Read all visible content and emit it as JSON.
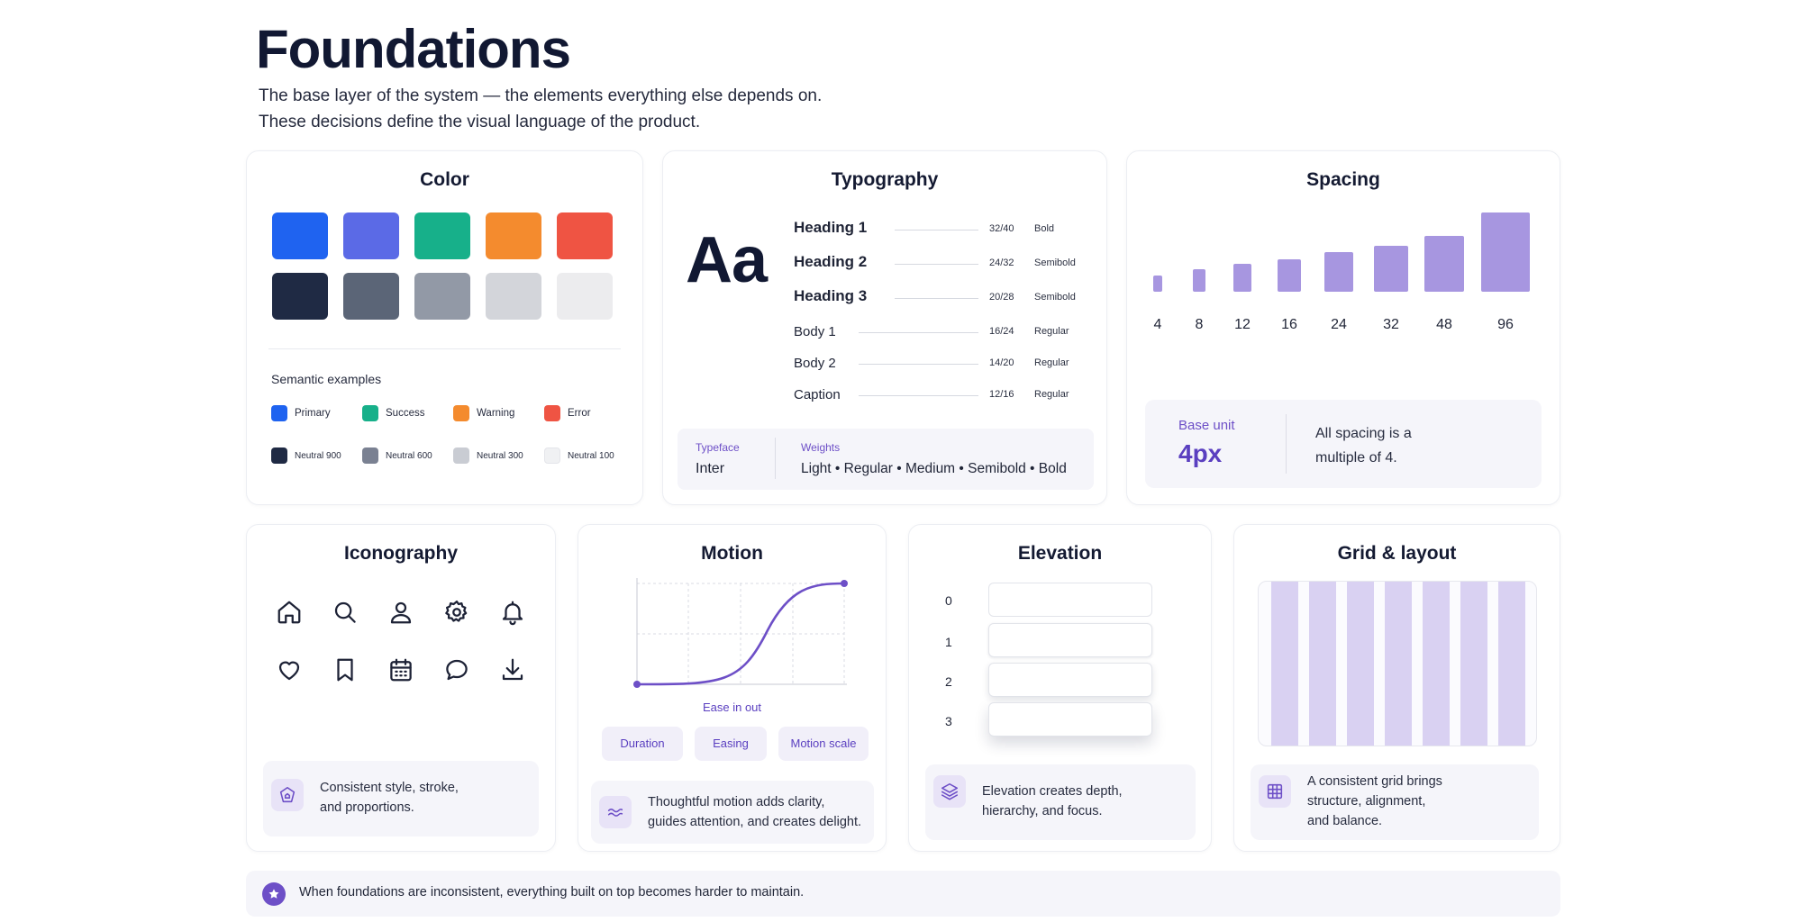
{
  "header": {
    "title": "Foundations",
    "subtitle_line1": "The base layer of the system — the elements everything else depends on.",
    "subtitle_line2": "These decisions define the visual language of the product."
  },
  "color": {
    "title": "Color",
    "swatches_row1": [
      "#1f63f0",
      "#5b6ae6",
      "#17b08a",
      "#f48b2e",
      "#ef5443"
    ],
    "swatches_row2": [
      "#1f2a44",
      "#5b6577",
      "#9299a6",
      "#d3d5da",
      "#ececee"
    ],
    "semantic_title": "Semantic examples",
    "semantic": [
      {
        "label": "Primary",
        "color": "#1f63f0"
      },
      {
        "label": "Success",
        "color": "#17b08a"
      },
      {
        "label": "Warning",
        "color": "#f48b2e"
      },
      {
        "label": "Error",
        "color": "#ef5443"
      }
    ],
    "neutrals": [
      {
        "label": "Neutral 900",
        "color": "#1f2a44"
      },
      {
        "label": "Neutral 600",
        "color": "#7a8192"
      },
      {
        "label": "Neutral 300",
        "color": "#c9ccd3"
      },
      {
        "label": "Neutral 100",
        "color": "#f0f1f3"
      }
    ]
  },
  "typography": {
    "title": "Typography",
    "sample": "Aa",
    "scale": [
      {
        "name": "Heading 1",
        "size": "32/40",
        "weight": "Bold"
      },
      {
        "name": "Heading 2",
        "size": "24/32",
        "weight": "Semibold"
      },
      {
        "name": "Heading 3",
        "size": "20/28",
        "weight": "Semibold"
      },
      {
        "name": "Body 1",
        "size": "16/24",
        "weight": "Regular"
      },
      {
        "name": "Body 2",
        "size": "14/20",
        "weight": "Regular"
      },
      {
        "name": "Caption",
        "size": "12/16",
        "weight": "Regular"
      }
    ],
    "typeface_label": "Typeface",
    "typeface_value": "Inter",
    "weights_label": "Weights",
    "weights_value": "Light  • Regular • Medium • Semibold • Bold"
  },
  "spacing": {
    "title": "Spacing",
    "steps": [
      "4",
      "8",
      "12",
      "16",
      "24",
      "32",
      "48",
      "96"
    ],
    "base_label": "Base unit",
    "base_value": "4px",
    "note_line1": "All spacing is a",
    "note_line2": "multiple of 4."
  },
  "iconography": {
    "title": "Iconography",
    "icons": [
      "home-icon",
      "search-icon",
      "user-icon",
      "gear-icon",
      "bell-icon",
      "heart-icon",
      "bookmark-icon",
      "calendar-icon",
      "chat-icon",
      "download-icon"
    ],
    "note_line1": "Consistent style, stroke,",
    "note_line2": "and proportions."
  },
  "motion": {
    "title": "Motion",
    "curve_label": "Ease in out",
    "pills": [
      "Duration",
      "Easing",
      "Motion scale"
    ],
    "note_line1": "Thoughtful motion adds clarity,",
    "note_line2": "guides attention, and creates delight."
  },
  "elevation": {
    "title": "Elevation",
    "levels": [
      "0",
      "1",
      "2",
      "3"
    ],
    "note_line1": "Elevation creates depth,",
    "note_line2": "hierarchy, and focus."
  },
  "grid": {
    "title": "Grid & layout",
    "columns": 7,
    "note_line1": "A consistent grid brings",
    "note_line2": "structure, alignment,",
    "note_line3": "and balance."
  },
  "footer": {
    "text": "When foundations are inconsistent, everything built on top becomes harder to maintain."
  },
  "accent": "#6d4fc7"
}
